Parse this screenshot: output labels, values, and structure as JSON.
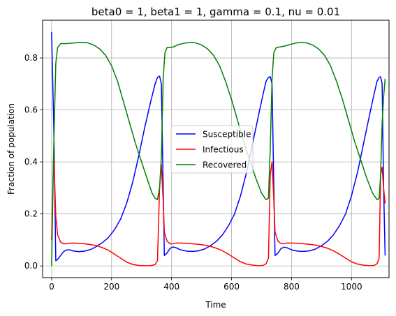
{
  "chart_data": {
    "type": "line",
    "title": "beta0 = 1, beta1 = 1, gamma = 0.1, nu = 0.01",
    "xlabel": "Time",
    "ylabel": "Fraction of population",
    "xlim": [
      -30,
      1125
    ],
    "ylim": [
      -0.045,
      0.945
    ],
    "xticks": [
      0,
      200,
      400,
      600,
      800,
      1000
    ],
    "xtick_labels": [
      "0",
      "200",
      "400",
      "600",
      "800",
      "1000"
    ],
    "yticks": [
      0.0,
      0.2,
      0.4,
      0.6,
      0.8
    ],
    "ytick_labels": [
      "0.0",
      "0.2",
      "0.4",
      "0.6",
      "0.8"
    ],
    "grid": true,
    "legend_position": "center",
    "series": [
      {
        "name": "Susceptible",
        "color": "#0000ff",
        "points": [
          [
            0,
            0.9
          ],
          [
            7,
            0.55
          ],
          [
            14,
            0.02
          ],
          [
            20,
            0.025
          ],
          [
            30,
            0.04
          ],
          [
            40,
            0.055
          ],
          [
            50,
            0.062
          ],
          [
            60,
            0.062
          ],
          [
            70,
            0.058
          ],
          [
            90,
            0.055
          ],
          [
            110,
            0.057
          ],
          [
            130,
            0.063
          ],
          [
            150,
            0.075
          ],
          [
            170,
            0.09
          ],
          [
            190,
            0.11
          ],
          [
            210,
            0.14
          ],
          [
            230,
            0.18
          ],
          [
            250,
            0.24
          ],
          [
            270,
            0.32
          ],
          [
            290,
            0.42
          ],
          [
            310,
            0.53
          ],
          [
            330,
            0.63
          ],
          [
            345,
            0.7
          ],
          [
            353,
            0.725
          ],
          [
            360,
            0.73
          ],
          [
            366,
            0.7
          ],
          [
            372,
            0.3
          ],
          [
            376,
            0.04
          ],
          [
            385,
            0.05
          ],
          [
            395,
            0.068
          ],
          [
            405,
            0.073
          ],
          [
            415,
            0.07
          ],
          [
            430,
            0.062
          ],
          [
            450,
            0.057
          ],
          [
            470,
            0.056
          ],
          [
            490,
            0.058
          ],
          [
            510,
            0.065
          ],
          [
            530,
            0.078
          ],
          [
            550,
            0.095
          ],
          [
            570,
            0.12
          ],
          [
            590,
            0.155
          ],
          [
            610,
            0.2
          ],
          [
            630,
            0.27
          ],
          [
            650,
            0.36
          ],
          [
            670,
            0.47
          ],
          [
            690,
            0.58
          ],
          [
            705,
            0.66
          ],
          [
            715,
            0.71
          ],
          [
            723,
            0.725
          ],
          [
            729,
            0.728
          ],
          [
            735,
            0.7
          ],
          [
            741,
            0.3
          ],
          [
            745,
            0.04
          ],
          [
            755,
            0.05
          ],
          [
            765,
            0.067
          ],
          [
            775,
            0.072
          ],
          [
            785,
            0.07
          ],
          [
            800,
            0.062
          ],
          [
            820,
            0.057
          ],
          [
            840,
            0.056
          ],
          [
            860,
            0.058
          ],
          [
            880,
            0.065
          ],
          [
            900,
            0.078
          ],
          [
            920,
            0.095
          ],
          [
            940,
            0.12
          ],
          [
            960,
            0.155
          ],
          [
            980,
            0.2
          ],
          [
            1000,
            0.27
          ],
          [
            1020,
            0.36
          ],
          [
            1040,
            0.47
          ],
          [
            1060,
            0.58
          ],
          [
            1075,
            0.66
          ],
          [
            1085,
            0.71
          ],
          [
            1092,
            0.725
          ],
          [
            1097,
            0.728
          ],
          [
            1102,
            0.7
          ],
          [
            1107,
            0.3
          ],
          [
            1112,
            0.04
          ]
        ]
      },
      {
        "name": "Infectious",
        "color": "#ff0000",
        "points": [
          [
            0,
            0.1
          ],
          [
            7,
            0.44
          ],
          [
            14,
            0.19
          ],
          [
            20,
            0.12
          ],
          [
            30,
            0.092
          ],
          [
            40,
            0.085
          ],
          [
            50,
            0.085
          ],
          [
            60,
            0.087
          ],
          [
            70,
            0.088
          ],
          [
            90,
            0.087
          ],
          [
            110,
            0.085
          ],
          [
            130,
            0.082
          ],
          [
            150,
            0.078
          ],
          [
            170,
            0.07
          ],
          [
            190,
            0.06
          ],
          [
            210,
            0.045
          ],
          [
            230,
            0.03
          ],
          [
            250,
            0.015
          ],
          [
            270,
            0.006
          ],
          [
            290,
            0.002
          ],
          [
            310,
            0.001
          ],
          [
            330,
            0.001
          ],
          [
            345,
            0.005
          ],
          [
            353,
            0.02
          ],
          [
            360,
            0.3
          ],
          [
            366,
            0.39
          ],
          [
            372,
            0.25
          ],
          [
            376,
            0.13
          ],
          [
            385,
            0.095
          ],
          [
            395,
            0.085
          ],
          [
            405,
            0.085
          ],
          [
            415,
            0.088
          ],
          [
            430,
            0.088
          ],
          [
            450,
            0.087
          ],
          [
            470,
            0.085
          ],
          [
            490,
            0.083
          ],
          [
            510,
            0.08
          ],
          [
            530,
            0.075
          ],
          [
            550,
            0.068
          ],
          [
            570,
            0.058
          ],
          [
            590,
            0.045
          ],
          [
            610,
            0.03
          ],
          [
            630,
            0.016
          ],
          [
            650,
            0.007
          ],
          [
            670,
            0.003
          ],
          [
            690,
            0.001
          ],
          [
            705,
            0.002
          ],
          [
            715,
            0.008
          ],
          [
            723,
            0.03
          ],
          [
            729,
            0.35
          ],
          [
            735,
            0.4
          ],
          [
            741,
            0.25
          ],
          [
            745,
            0.13
          ],
          [
            755,
            0.095
          ],
          [
            765,
            0.086
          ],
          [
            775,
            0.085
          ],
          [
            785,
            0.088
          ],
          [
            800,
            0.088
          ],
          [
            820,
            0.087
          ],
          [
            840,
            0.085
          ],
          [
            860,
            0.083
          ],
          [
            880,
            0.08
          ],
          [
            900,
            0.075
          ],
          [
            920,
            0.068
          ],
          [
            940,
            0.058
          ],
          [
            960,
            0.045
          ],
          [
            980,
            0.03
          ],
          [
            1000,
            0.016
          ],
          [
            1020,
            0.007
          ],
          [
            1040,
            0.003
          ],
          [
            1060,
            0.001
          ],
          [
            1075,
            0.002
          ],
          [
            1085,
            0.008
          ],
          [
            1092,
            0.03
          ],
          [
            1097,
            0.35
          ],
          [
            1102,
            0.38
          ],
          [
            1107,
            0.3
          ],
          [
            1112,
            0.24
          ]
        ]
      },
      {
        "name": "Recovered",
        "color": "#008000",
        "points": [
          [
            0,
            0.0
          ],
          [
            7,
            0.45
          ],
          [
            14,
            0.78
          ],
          [
            20,
            0.84
          ],
          [
            30,
            0.855
          ],
          [
            40,
            0.855
          ],
          [
            50,
            0.855
          ],
          [
            60,
            0.856
          ],
          [
            80,
            0.858
          ],
          [
            100,
            0.86
          ],
          [
            120,
            0.858
          ],
          [
            140,
            0.85
          ],
          [
            160,
            0.835
          ],
          [
            180,
            0.81
          ],
          [
            200,
            0.77
          ],
          [
            220,
            0.71
          ],
          [
            240,
            0.63
          ],
          [
            260,
            0.55
          ],
          [
            280,
            0.47
          ],
          [
            300,
            0.4
          ],
          [
            320,
            0.33
          ],
          [
            335,
            0.28
          ],
          [
            345,
            0.26
          ],
          [
            353,
            0.255
          ],
          [
            360,
            0.3
          ],
          [
            366,
            0.42
          ],
          [
            372,
            0.72
          ],
          [
            378,
            0.82
          ],
          [
            385,
            0.84
          ],
          [
            395,
            0.84
          ],
          [
            405,
            0.842
          ],
          [
            420,
            0.85
          ],
          [
            440,
            0.856
          ],
          [
            460,
            0.86
          ],
          [
            480,
            0.858
          ],
          [
            500,
            0.85
          ],
          [
            520,
            0.835
          ],
          [
            540,
            0.81
          ],
          [
            560,
            0.77
          ],
          [
            580,
            0.71
          ],
          [
            600,
            0.64
          ],
          [
            620,
            0.56
          ],
          [
            640,
            0.48
          ],
          [
            660,
            0.41
          ],
          [
            680,
            0.34
          ],
          [
            700,
            0.28
          ],
          [
            715,
            0.255
          ],
          [
            723,
            0.26
          ],
          [
            729,
            0.45
          ],
          [
            735,
            0.72
          ],
          [
            741,
            0.82
          ],
          [
            749,
            0.84
          ],
          [
            760,
            0.842
          ],
          [
            775,
            0.845
          ],
          [
            790,
            0.85
          ],
          [
            810,
            0.856
          ],
          [
            830,
            0.86
          ],
          [
            850,
            0.858
          ],
          [
            870,
            0.85
          ],
          [
            890,
            0.835
          ],
          [
            910,
            0.81
          ],
          [
            930,
            0.77
          ],
          [
            950,
            0.71
          ],
          [
            970,
            0.64
          ],
          [
            990,
            0.56
          ],
          [
            1010,
            0.48
          ],
          [
            1030,
            0.41
          ],
          [
            1050,
            0.34
          ],
          [
            1070,
            0.28
          ],
          [
            1085,
            0.255
          ],
          [
            1092,
            0.26
          ],
          [
            1097,
            0.35
          ],
          [
            1102,
            0.55
          ],
          [
            1107,
            0.65
          ],
          [
            1112,
            0.72
          ]
        ]
      }
    ]
  }
}
